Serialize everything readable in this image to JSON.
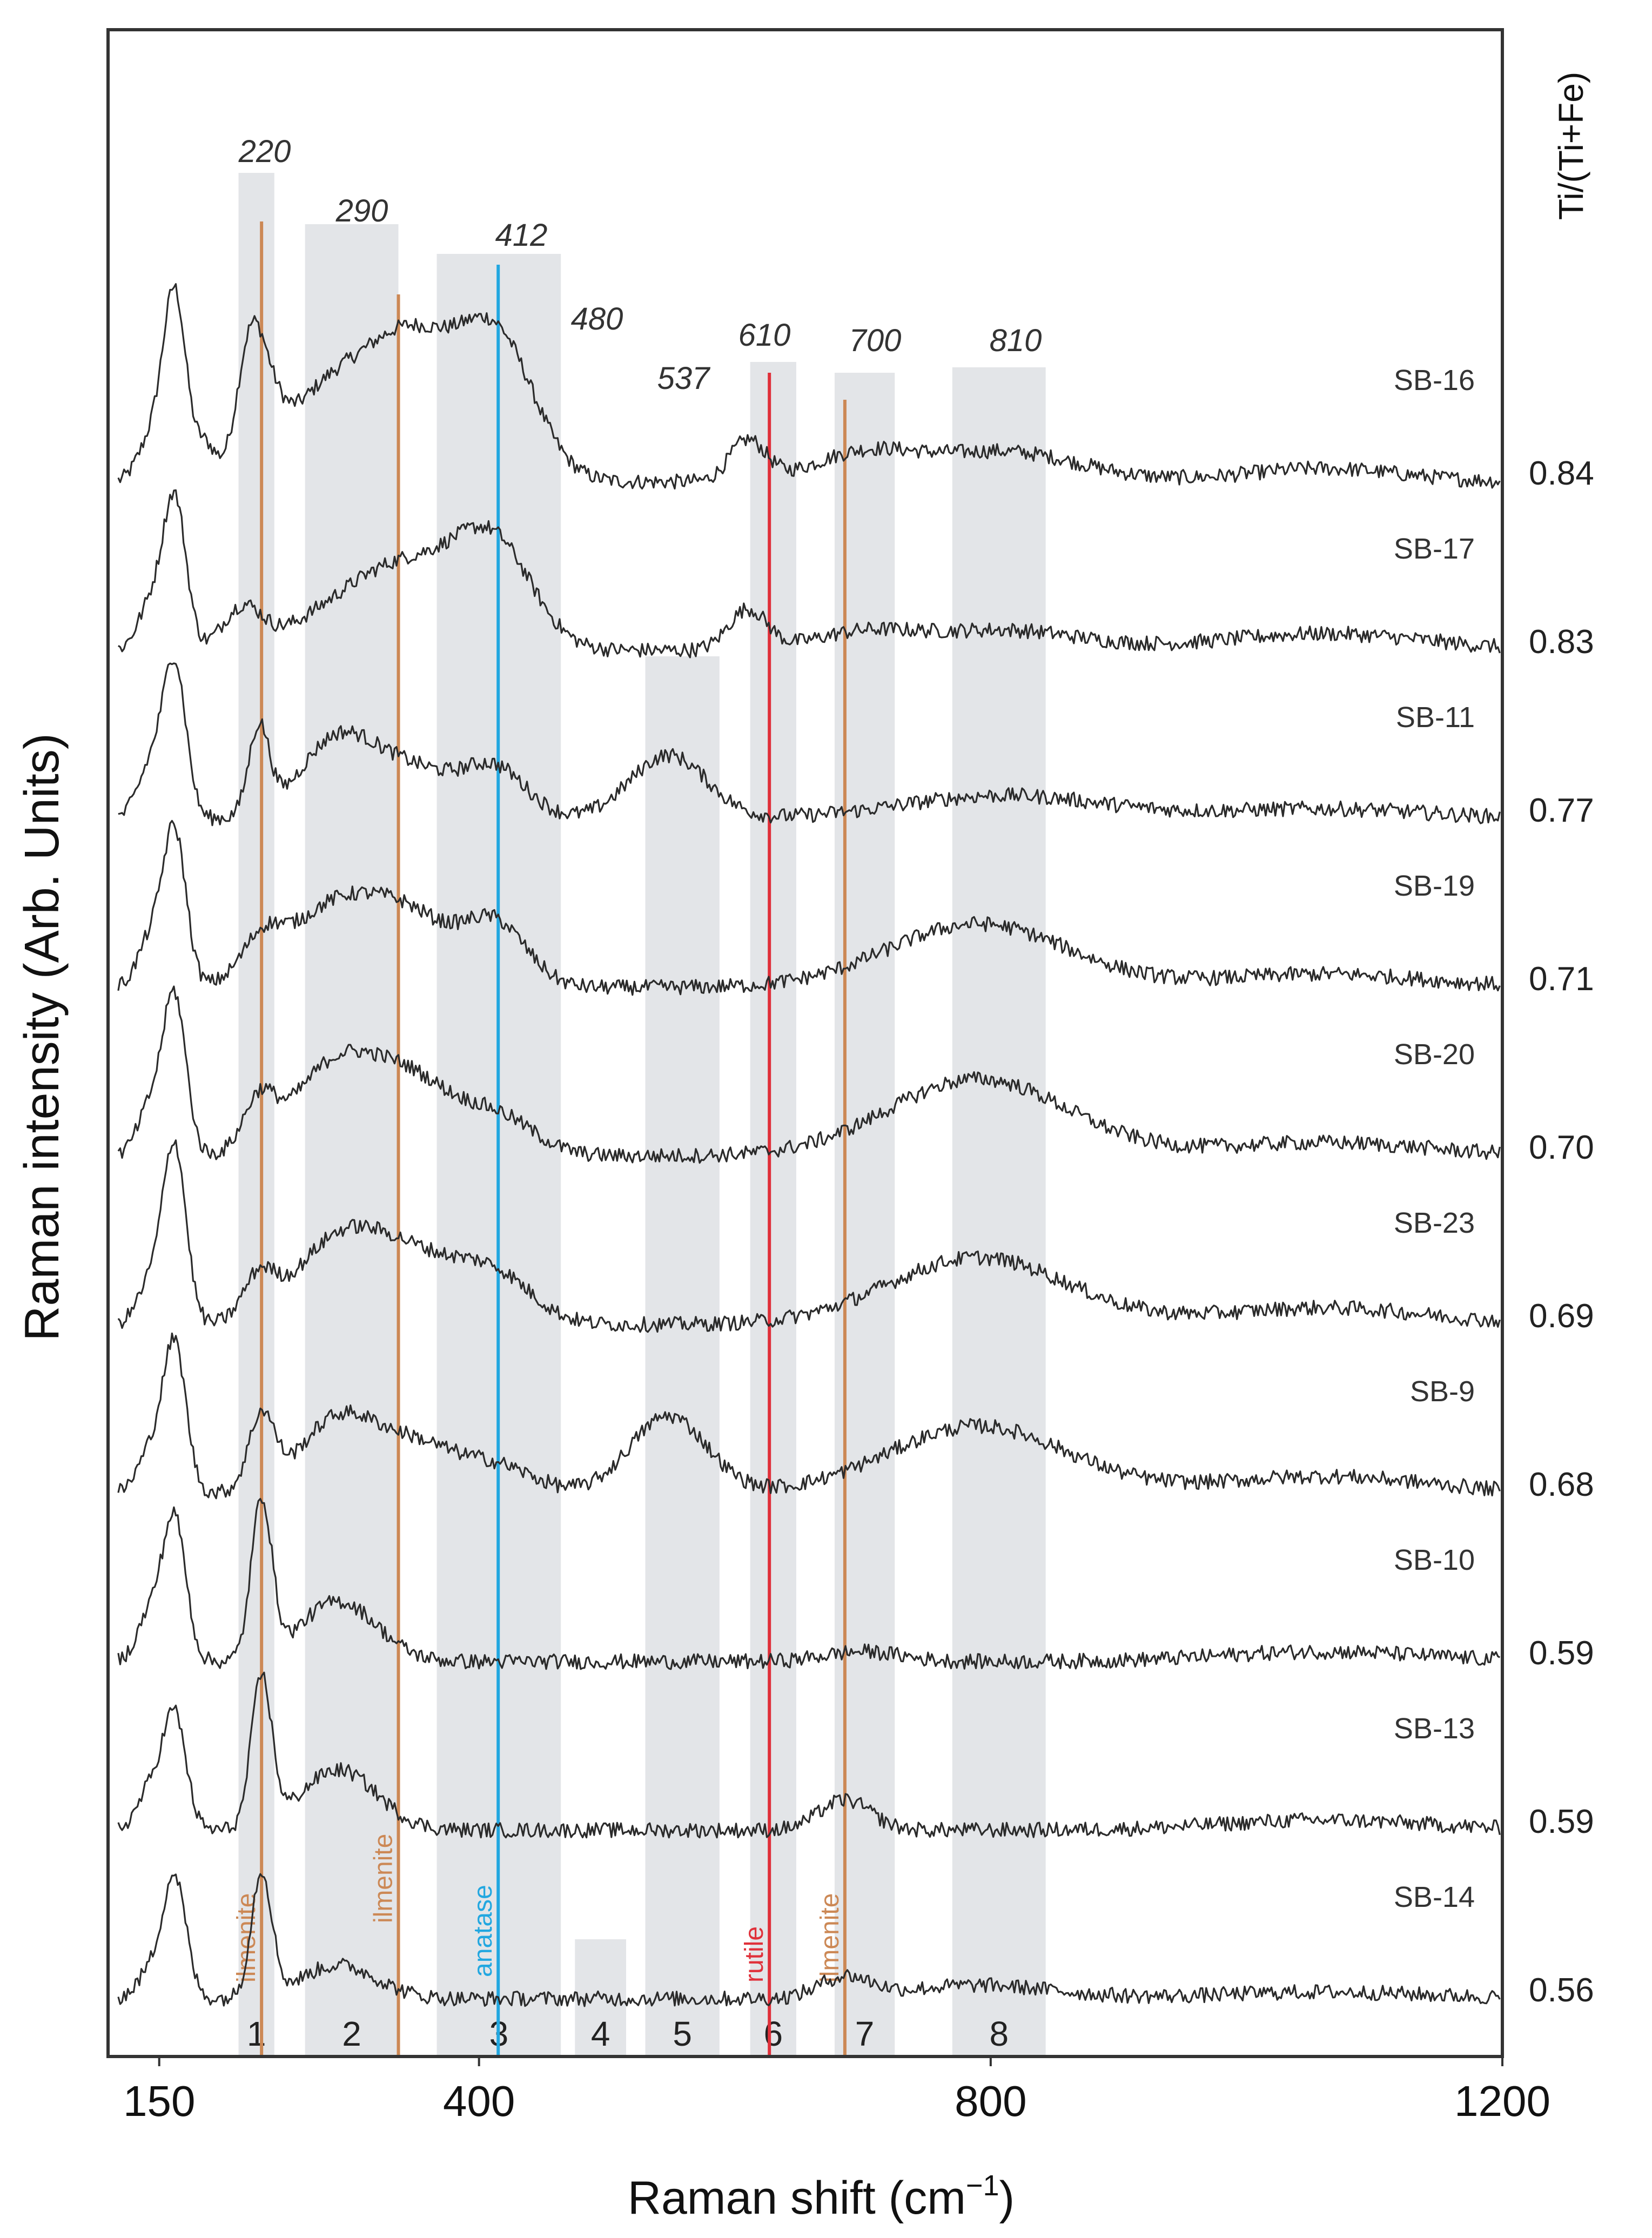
{
  "chart_data": {
    "type": "line",
    "title": "",
    "xlabel": "Raman shift (cm",
    "xlabel_sup": "−1",
    "xlabel_end": ")",
    "ylabel": "Raman intensity (Arb. Units)",
    "right_axis_title": "Ti/(Ti+Fe)",
    "xlim": [
      110,
      1200
    ],
    "x_ticks": [
      {
        "value": 150,
        "label": "150"
      },
      {
        "value": 400,
        "label": "400"
      },
      {
        "value": 800,
        "label": "800"
      },
      {
        "value": 1200,
        "label": "1200"
      }
    ],
    "bands": [
      {
        "id": "1",
        "from": 212,
        "to": 240,
        "peak_label": "220",
        "top_intensity": 1.0
      },
      {
        "id": "2",
        "from": 264,
        "to": 337,
        "peak_label": "290",
        "top_intensity": 1.0
      },
      {
        "id": "3",
        "from": 367,
        "to": 464,
        "peak_label": "412",
        "top_intensity": 1.0
      },
      {
        "id": "4",
        "from": 475,
        "to": 515,
        "peak_label": "480",
        "top_intensity": 0.0
      },
      {
        "id": "5",
        "from": 530,
        "to": 588,
        "peak_label": "537",
        "top_intensity": 0.0
      },
      {
        "id": "6",
        "from": 612,
        "to": 648,
        "peak_label": "610",
        "top_intensity": 0.0
      },
      {
        "id": "7",
        "from": 678,
        "to": 725,
        "peak_label": "700",
        "top_intensity": 0.0
      },
      {
        "id": "8",
        "from": 770,
        "to": 843,
        "peak_label": "810",
        "top_intensity": 0.0
      }
    ],
    "reference_lines": [
      {
        "x": 230,
        "label": "ilmenite",
        "color": "#cc8855"
      },
      {
        "x": 337,
        "label": "ilmenite",
        "color": "#cc8855"
      },
      {
        "x": 415,
        "label": "anatase",
        "color": "#22a7e0"
      },
      {
        "x": 627,
        "label": "rutile",
        "color": "#e0303a"
      },
      {
        "x": 686,
        "label": "ilmenite",
        "color": "#cc8855"
      }
    ],
    "series": [
      {
        "name": "SB-16",
        "ratio": "0.84",
        "offset": 9,
        "peaks": [
          [
            143,
            1.2,
            10
          ],
          [
            162,
            5.6,
            9
          ],
          [
            186,
            1.0,
            8
          ],
          [
            220,
            2.8,
            10
          ],
          [
            232,
            1.8,
            12
          ],
          [
            290,
            3.0,
            40
          ],
          [
            350,
            3.2,
            30
          ],
          [
            412,
            4.4,
            30
          ],
          [
            610,
            1.2,
            14
          ],
          [
            700,
            0.8,
            40
          ],
          [
            810,
            0.9,
            60
          ],
          [
            1060,
            0.4,
            60
          ]
        ]
      },
      {
        "name": "SB-17",
        "ratio": "0.83",
        "offset": 8,
        "peaks": [
          [
            143,
            1.3,
            10
          ],
          [
            162,
            4.5,
            9
          ],
          [
            215,
            1.2,
            15
          ],
          [
            290,
            1.0,
            40
          ],
          [
            350,
            2.2,
            40
          ],
          [
            412,
            2.9,
            30
          ],
          [
            610,
            1.2,
            15
          ],
          [
            700,
            0.5,
            40
          ],
          [
            810,
            0.6,
            60
          ],
          [
            1060,
            0.5,
            80
          ]
        ]
      },
      {
        "name": "SB-11",
        "ratio": "0.77",
        "offset": 7,
        "peaks": [
          [
            143,
            1.5,
            10
          ],
          [
            162,
            4.6,
            9
          ],
          [
            228,
            2.6,
            8
          ],
          [
            290,
            2.4,
            30
          ],
          [
            350,
            1.3,
            30
          ],
          [
            412,
            1.5,
            25
          ],
          [
            548,
            1.9,
            30
          ],
          [
            810,
            0.7,
            80
          ],
          [
            1060,
            0.3,
            80
          ]
        ]
      },
      {
        "name": "SB-19",
        "ratio": "0.71",
        "offset": 6,
        "peaks": [
          [
            143,
            1.4,
            10
          ],
          [
            162,
            4.6,
            9
          ],
          [
            230,
            1.0,
            15
          ],
          [
            290,
            2.5,
            40
          ],
          [
            350,
            1.5,
            30
          ],
          [
            412,
            1.9,
            25
          ],
          [
            790,
            1.9,
            70
          ],
          [
            1060,
            0.4,
            80
          ]
        ]
      },
      {
        "name": "SB-20",
        "ratio": "0.70",
        "offset": 5,
        "peaks": [
          [
            143,
            1.4,
            10
          ],
          [
            162,
            4.7,
            9
          ],
          [
            228,
            1.4,
            12
          ],
          [
            290,
            2.8,
            35
          ],
          [
            350,
            1.8,
            30
          ],
          [
            412,
            1.2,
            30
          ],
          [
            790,
            2.3,
            70
          ],
          [
            1060,
            0.4,
            80
          ]
        ]
      },
      {
        "name": "SB-23",
        "ratio": "0.69",
        "offset": 4,
        "peaks": [
          [
            143,
            1.2,
            10
          ],
          [
            162,
            5.3,
            9
          ],
          [
            228,
            1.2,
            12
          ],
          [
            290,
            2.4,
            35
          ],
          [
            350,
            1.7,
            35
          ],
          [
            412,
            1.4,
            30
          ],
          [
            790,
            2.0,
            70
          ],
          [
            1060,
            0.5,
            80
          ]
        ]
      },
      {
        "name": "SB-9",
        "ratio": "0.68",
        "offset": 3,
        "peaks": [
          [
            143,
            1.2,
            10
          ],
          [
            162,
            4.4,
            9
          ],
          [
            230,
            2.2,
            10
          ],
          [
            290,
            2.2,
            30
          ],
          [
            350,
            1.3,
            30
          ],
          [
            412,
            0.8,
            30
          ],
          [
            548,
            2.3,
            30
          ],
          [
            790,
            2.0,
            70
          ],
          [
            1060,
            0.5,
            80
          ]
        ]
      },
      {
        "name": "SB-10",
        "ratio": "0.59",
        "offset": 2,
        "peaks": [
          [
            143,
            1.4,
            10
          ],
          [
            162,
            4.2,
            9
          ],
          [
            230,
            4.7,
            8
          ],
          [
            290,
            1.8,
            30
          ],
          [
            700,
            0.3,
            30
          ],
          [
            1060,
            0.3,
            80
          ]
        ]
      },
      {
        "name": "SB-13",
        "ratio": "0.59",
        "offset": 1,
        "peaks": [
          [
            143,
            1.2,
            10
          ],
          [
            162,
            3.4,
            9
          ],
          [
            230,
            4.4,
            8
          ],
          [
            290,
            1.8,
            30
          ],
          [
            686,
            0.9,
            20
          ],
          [
            1060,
            0.3,
            80
          ]
        ]
      },
      {
        "name": "SB-14",
        "ratio": "0.56",
        "offset": 0,
        "peaks": [
          [
            143,
            0.8,
            10
          ],
          [
            162,
            3.6,
            9
          ],
          [
            230,
            3.7,
            8
          ],
          [
            290,
            1.0,
            30
          ],
          [
            686,
            0.6,
            20
          ],
          [
            790,
            0.4,
            60
          ],
          [
            1060,
            0.2,
            80
          ]
        ]
      }
    ]
  }
}
